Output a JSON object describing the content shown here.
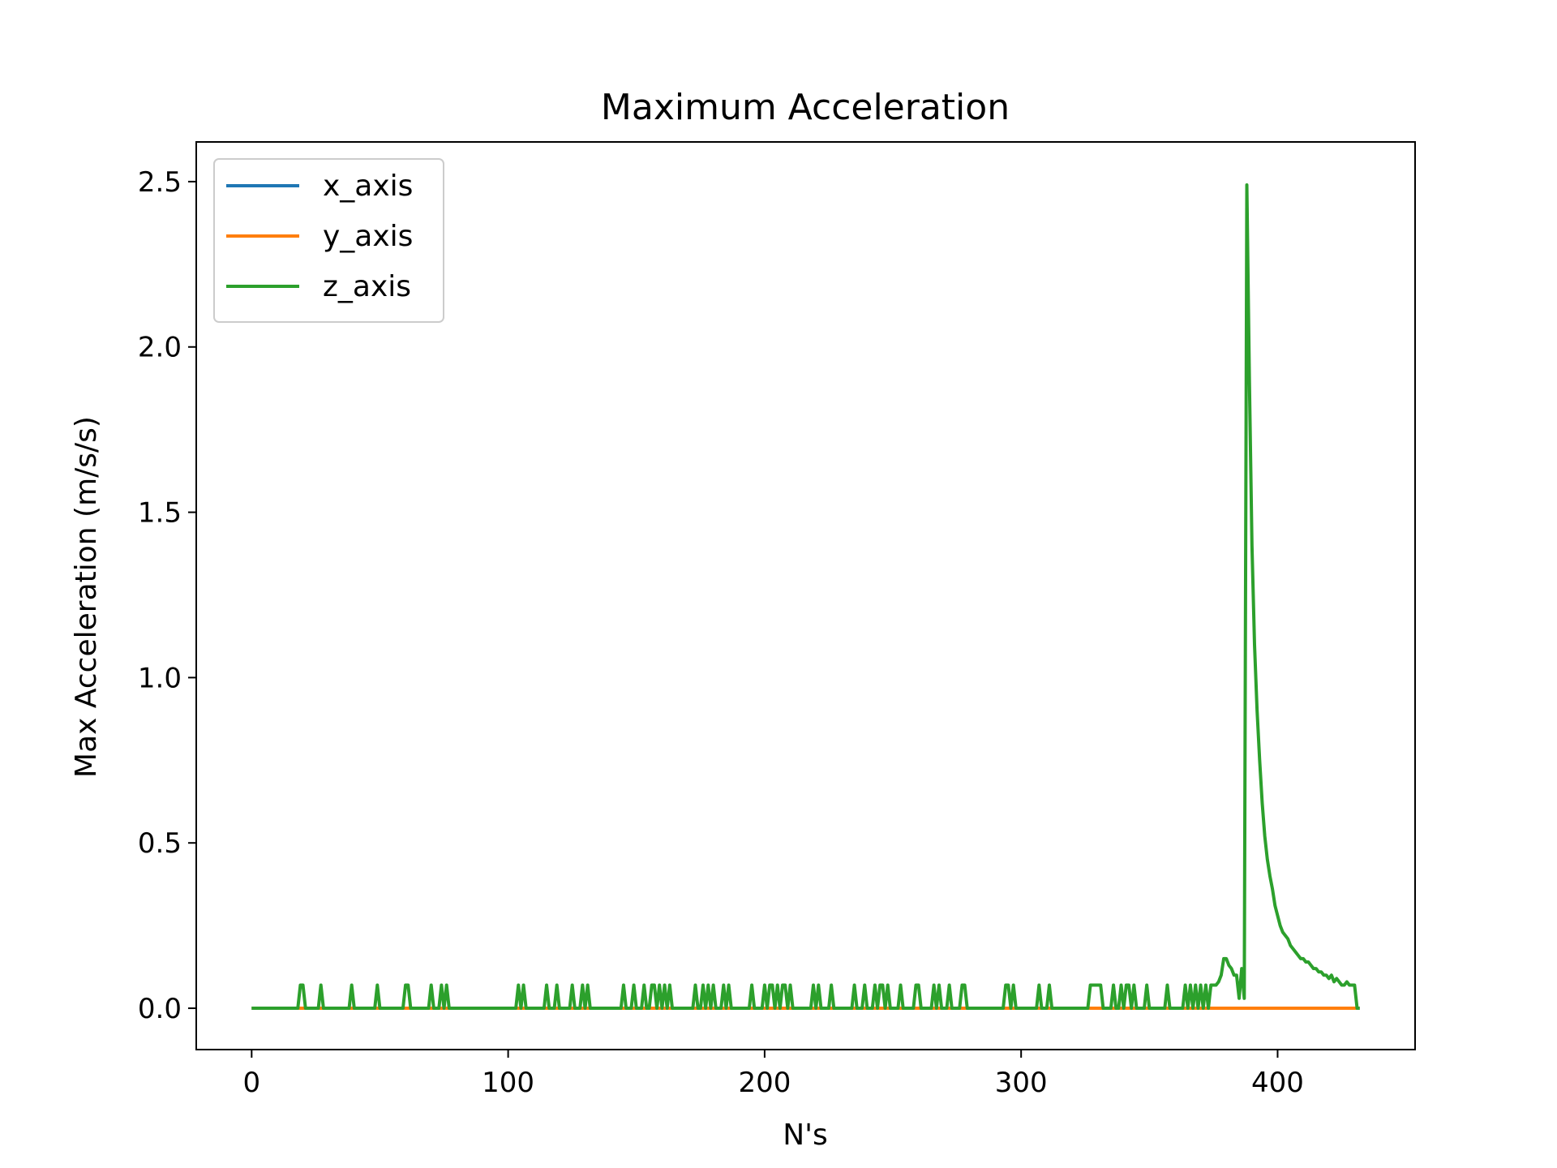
{
  "chart_data": {
    "type": "line",
    "title": "Maximum Acceleration",
    "xlabel": "N's",
    "ylabel": "Max Acceleration (m/s/s)",
    "xlim": [
      -21.6,
      453.6
    ],
    "ylim": [
      -0.125,
      2.62
    ],
    "xticks": [
      0,
      100,
      200,
      300,
      400
    ],
    "yticks": [
      0.0,
      0.5,
      1.0,
      1.5,
      2.0,
      2.5
    ],
    "xtick_labels": [
      "0",
      "100",
      "200",
      "300",
      "400"
    ],
    "ytick_labels": [
      "0.0",
      "0.5",
      "1.0",
      "1.5",
      "2.0",
      "2.5"
    ],
    "grid": false,
    "legend_position": "upper-left",
    "series": [
      {
        "name": "x_axis",
        "color": "#1f77b4",
        "points": [
          [
            0,
            0
          ],
          [
            432,
            0
          ]
        ]
      },
      {
        "name": "y_axis",
        "color": "#ff7f0e",
        "points": [
          [
            0,
            0
          ],
          [
            432,
            0
          ]
        ]
      },
      {
        "name": "z_axis",
        "color": "#2ca02c",
        "points": [
          [
            0,
            0
          ],
          [
            18,
            0
          ],
          [
            19,
            0.07
          ],
          [
            20,
            0.07
          ],
          [
            21,
            0
          ],
          [
            26,
            0
          ],
          [
            27,
            0.07
          ],
          [
            28,
            0
          ],
          [
            38,
            0
          ],
          [
            39,
            0.07
          ],
          [
            40,
            0
          ],
          [
            48,
            0
          ],
          [
            49,
            0.07
          ],
          [
            50,
            0
          ],
          [
            59,
            0
          ],
          [
            60,
            0.07
          ],
          [
            61,
            0.07
          ],
          [
            62,
            0
          ],
          [
            69,
            0
          ],
          [
            70,
            0.07
          ],
          [
            71,
            0
          ],
          [
            73,
            0
          ],
          [
            74,
            0.07
          ],
          [
            75,
            0
          ],
          [
            76,
            0.07
          ],
          [
            77,
            0
          ],
          [
            103,
            0
          ],
          [
            104,
            0.07
          ],
          [
            105,
            0
          ],
          [
            106,
            0.07
          ],
          [
            107,
            0
          ],
          [
            114,
            0
          ],
          [
            115,
            0.07
          ],
          [
            116,
            0
          ],
          [
            118,
            0
          ],
          [
            119,
            0.07
          ],
          [
            120,
            0
          ],
          [
            124,
            0
          ],
          [
            125,
            0.07
          ],
          [
            126,
            0
          ],
          [
            128,
            0
          ],
          [
            129,
            0.07
          ],
          [
            130,
            0
          ],
          [
            131,
            0.07
          ],
          [
            132,
            0
          ],
          [
            144,
            0
          ],
          [
            145,
            0.07
          ],
          [
            146,
            0
          ],
          [
            148,
            0
          ],
          [
            149,
            0.07
          ],
          [
            150,
            0
          ],
          [
            152,
            0
          ],
          [
            153,
            0.07
          ],
          [
            154,
            0
          ],
          [
            155,
            0
          ],
          [
            156,
            0.07
          ],
          [
            157,
            0.07
          ],
          [
            158,
            0
          ],
          [
            159,
            0.07
          ],
          [
            160,
            0
          ],
          [
            161,
            0.07
          ],
          [
            162,
            0
          ],
          [
            163,
            0.07
          ],
          [
            164,
            0
          ],
          [
            172,
            0
          ],
          [
            173,
            0.07
          ],
          [
            174,
            0
          ],
          [
            175,
            0
          ],
          [
            176,
            0.07
          ],
          [
            177,
            0
          ],
          [
            178,
            0.07
          ],
          [
            179,
            0
          ],
          [
            180,
            0.07
          ],
          [
            181,
            0
          ],
          [
            183,
            0
          ],
          [
            184,
            0.07
          ],
          [
            185,
            0
          ],
          [
            186,
            0.07
          ],
          [
            187,
            0
          ],
          [
            194,
            0
          ],
          [
            195,
            0.07
          ],
          [
            196,
            0
          ],
          [
            199,
            0
          ],
          [
            200,
            0.07
          ],
          [
            201,
            0
          ],
          [
            202,
            0.07
          ],
          [
            203,
            0.07
          ],
          [
            204,
            0
          ],
          [
            205,
            0.07
          ],
          [
            206,
            0
          ],
          [
            207,
            0.07
          ],
          [
            208,
            0.07
          ],
          [
            209,
            0
          ],
          [
            210,
            0.07
          ],
          [
            211,
            0
          ],
          [
            218,
            0
          ],
          [
            219,
            0.07
          ],
          [
            220,
            0
          ],
          [
            221,
            0.07
          ],
          [
            222,
            0
          ],
          [
            225,
            0
          ],
          [
            226,
            0.07
          ],
          [
            227,
            0
          ],
          [
            234,
            0
          ],
          [
            235,
            0.07
          ],
          [
            236,
            0
          ],
          [
            238,
            0
          ],
          [
            239,
            0.07
          ],
          [
            240,
            0
          ],
          [
            242,
            0
          ],
          [
            243,
            0.07
          ],
          [
            244,
            0
          ],
          [
            245,
            0.07
          ],
          [
            246,
            0.07
          ],
          [
            247,
            0
          ],
          [
            248,
            0.07
          ],
          [
            249,
            0
          ],
          [
            252,
            0
          ],
          [
            253,
            0.07
          ],
          [
            254,
            0
          ],
          [
            258,
            0
          ],
          [
            259,
            0.07
          ],
          [
            260,
            0.07
          ],
          [
            261,
            0
          ],
          [
            265,
            0
          ],
          [
            266,
            0.07
          ],
          [
            267,
            0
          ],
          [
            268,
            0.07
          ],
          [
            269,
            0
          ],
          [
            271,
            0
          ],
          [
            272,
            0.07
          ],
          [
            273,
            0
          ],
          [
            276,
            0
          ],
          [
            277,
            0.07
          ],
          [
            278,
            0.07
          ],
          [
            279,
            0
          ],
          [
            293,
            0
          ],
          [
            294,
            0.07
          ],
          [
            295,
            0.07
          ],
          [
            296,
            0
          ],
          [
            297,
            0.07
          ],
          [
            298,
            0
          ],
          [
            306,
            0
          ],
          [
            307,
            0.07
          ],
          [
            308,
            0
          ],
          [
            310,
            0
          ],
          [
            311,
            0.07
          ],
          [
            312,
            0
          ],
          [
            326,
            0
          ],
          [
            327,
            0.07
          ],
          [
            331,
            0.07
          ],
          [
            332,
            0
          ],
          [
            335,
            0
          ],
          [
            336,
            0.07
          ],
          [
            337,
            0
          ],
          [
            338,
            0
          ],
          [
            339,
            0.07
          ],
          [
            340,
            0
          ],
          [
            341,
            0.07
          ],
          [
            342,
            0.07
          ],
          [
            343,
            0
          ],
          [
            344,
            0.07
          ],
          [
            345,
            0
          ],
          [
            348,
            0
          ],
          [
            349,
            0.07
          ],
          [
            350,
            0
          ],
          [
            356,
            0
          ],
          [
            357,
            0.07
          ],
          [
            358,
            0
          ],
          [
            363,
            0
          ],
          [
            364,
            0.07
          ],
          [
            365,
            0
          ],
          [
            366,
            0.07
          ],
          [
            367,
            0
          ],
          [
            368,
            0.07
          ],
          [
            369,
            0
          ],
          [
            370,
            0.07
          ],
          [
            371,
            0
          ],
          [
            372,
            0.07
          ],
          [
            373,
            0
          ],
          [
            374,
            0.07
          ],
          [
            375,
            0.07
          ],
          [
            376,
            0.07
          ],
          [
            377,
            0.08
          ],
          [
            378,
            0.1
          ],
          [
            379,
            0.15
          ],
          [
            380,
            0.15
          ],
          [
            381,
            0.13
          ],
          [
            382,
            0.12
          ],
          [
            383,
            0.1
          ],
          [
            384,
            0.1
          ],
          [
            385,
            0.03
          ],
          [
            386,
            0.12
          ],
          [
            387,
            0.03
          ],
          [
            388,
            2.49
          ],
          [
            389,
            1.9
          ],
          [
            390,
            1.4
          ],
          [
            391,
            1.1
          ],
          [
            392,
            0.9
          ],
          [
            393,
            0.75
          ],
          [
            394,
            0.62
          ],
          [
            395,
            0.52
          ],
          [
            396,
            0.45
          ],
          [
            397,
            0.4
          ],
          [
            398,
            0.36
          ],
          [
            399,
            0.31
          ],
          [
            400,
            0.28
          ],
          [
            401,
            0.25
          ],
          [
            402,
            0.23
          ],
          [
            403,
            0.22
          ],
          [
            404,
            0.21
          ],
          [
            405,
            0.19
          ],
          [
            406,
            0.18
          ],
          [
            407,
            0.17
          ],
          [
            408,
            0.16
          ],
          [
            409,
            0.15
          ],
          [
            410,
            0.15
          ],
          [
            411,
            0.14
          ],
          [
            412,
            0.14
          ],
          [
            413,
            0.13
          ],
          [
            414,
            0.12
          ],
          [
            415,
            0.12
          ],
          [
            416,
            0.11
          ],
          [
            417,
            0.11
          ],
          [
            418,
            0.1
          ],
          [
            419,
            0.1
          ],
          [
            420,
            0.09
          ],
          [
            421,
            0.1
          ],
          [
            422,
            0.08
          ],
          [
            423,
            0.09
          ],
          [
            424,
            0.08
          ],
          [
            425,
            0.07
          ],
          [
            426,
            0.07
          ],
          [
            427,
            0.08
          ],
          [
            428,
            0.07
          ],
          [
            429,
            0.07
          ],
          [
            430,
            0.07
          ],
          [
            431,
            0
          ],
          [
            432,
            0
          ]
        ]
      }
    ]
  }
}
